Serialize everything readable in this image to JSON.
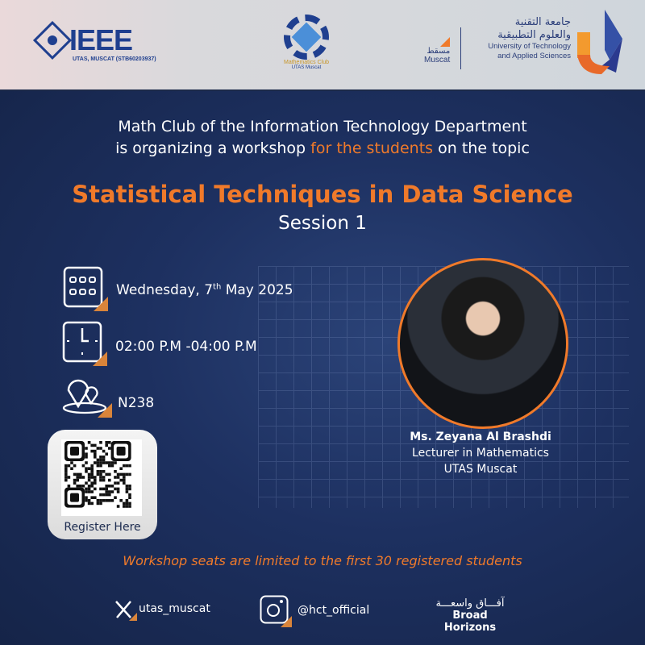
{
  "header": {
    "ieee": {
      "logo_text": "IEEE",
      "subtitle": "UTAS, MUSCAT (STB60203937)"
    },
    "math_club": {
      "line1": "Mathematics Club",
      "line2": "UTAS Muscat"
    },
    "muscat": {
      "arabic": "مسقط",
      "english": "Muscat"
    },
    "university": {
      "arabic_line1": "جامعة التقنية",
      "arabic_line2": "والعلوم التطبيقية",
      "english_line1": "University of Technology",
      "english_line2": "and Applied Sciences"
    }
  },
  "intro": {
    "line1": "Math Club of the Information Technology Department",
    "line2_prefix": "is organizing a workshop ",
    "line2_highlight": "for the students",
    "line2_suffix": " on the topic"
  },
  "title": "Statistical Techniques in Data Science",
  "session": "Session 1",
  "details": {
    "date_prefix": "Wednesday, 7",
    "date_sup": "th",
    "date_suffix": " May 2025",
    "time": "02:00 P.M -04:00 P.M",
    "location": "N238"
  },
  "register": {
    "label": "Register Here"
  },
  "speaker": {
    "name": "Ms. Zeyana Al Brashdi",
    "role": "Lecturer in Mathematics",
    "org": "UTAS Muscat"
  },
  "seats_note": "Workshop seats are limited to the first 30 registered students",
  "footer": {
    "x_handle": "utas_muscat",
    "instagram_handle": "@hct_official",
    "slogan_arabic": "آفـــاق واسعـــة",
    "slogan_english": "Broad Horizons"
  },
  "colors": {
    "accent": "#f07a2a",
    "background": "#17284d",
    "header": "#d9d9dc"
  }
}
